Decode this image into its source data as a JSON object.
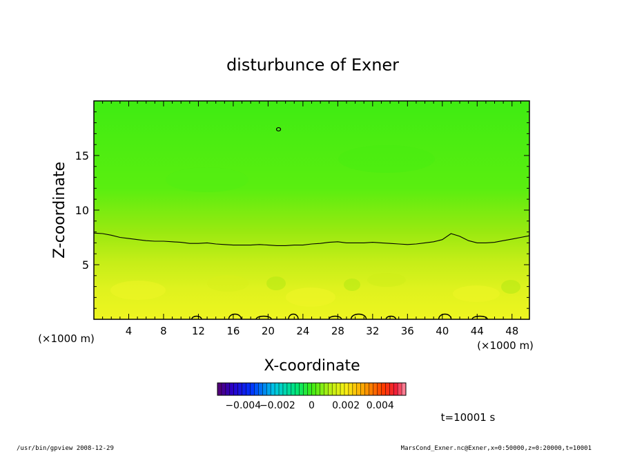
{
  "chart_data": {
    "type": "heatmap",
    "title": "disturbunce of Exner",
    "xlabel": "X-coordinate",
    "ylabel": "Z-coordinate",
    "x_unit_left": "(×1000 m)",
    "x_unit_right": "(×1000 m)",
    "xlim": [
      0,
      50
    ],
    "ylim": [
      0,
      20
    ],
    "x_ticks": [
      4,
      8,
      12,
      16,
      20,
      24,
      28,
      32,
      36,
      40,
      44,
      48
    ],
    "y_ticks": [
      5,
      10,
      15
    ],
    "colorbar": {
      "range": [
        -0.0055,
        0.0055
      ],
      "ticks": [
        -0.004,
        -0.002,
        0,
        0.002,
        0.004
      ],
      "tick_labels": [
        "−0.004",
        "−0.002",
        "0",
        "0.002",
        "0.004"
      ]
    },
    "contour_zero_line": {
      "x": [
        0,
        1,
        2,
        3,
        4,
        5,
        6,
        7,
        8,
        9,
        10,
        11,
        12,
        13,
        14,
        15,
        16,
        17,
        18,
        19,
        20,
        21,
        22,
        23,
        24,
        25,
        26,
        27,
        28,
        29,
        30,
        31,
        32,
        33,
        34,
        35,
        36,
        37,
        38,
        39,
        40,
        41,
        42,
        43,
        44,
        45,
        46,
        47,
        48,
        49,
        50
      ],
      "z": [
        7.9,
        7.85,
        7.7,
        7.5,
        7.4,
        7.3,
        7.2,
        7.15,
        7.15,
        7.1,
        7.05,
        6.95,
        6.95,
        7.0,
        6.9,
        6.85,
        6.8,
        6.8,
        6.8,
        6.85,
        6.8,
        6.75,
        6.75,
        6.8,
        6.8,
        6.9,
        6.95,
        7.05,
        7.1,
        7.0,
        7.0,
        7.0,
        7.05,
        7.0,
        6.95,
        6.9,
        6.85,
        6.9,
        7.0,
        7.1,
        7.3,
        7.85,
        7.6,
        7.2,
        7.0,
        7.0,
        7.05,
        7.2,
        7.35,
        7.5,
        7.65
      ]
    },
    "bottom_contour_bumps_x": [
      11.8,
      16.2,
      19.5,
      22.9,
      27.7,
      30.4,
      34.1,
      40.3,
      44.3
    ],
    "small_contour_at": [
      21.2,
      17.4
    ]
  },
  "annotations": {
    "time": "t=10001 s",
    "footer_left": "/usr/bin/gpview   2008-12-29",
    "footer_right": "MarsCond_Exner.nc@Exner,x=0:50000,z=0:20000,t=10001"
  },
  "colors": {
    "field_top": "#40ee10",
    "field_mid": "#8ee812",
    "field_bottom": "#eaf520",
    "contour": "#000000"
  }
}
